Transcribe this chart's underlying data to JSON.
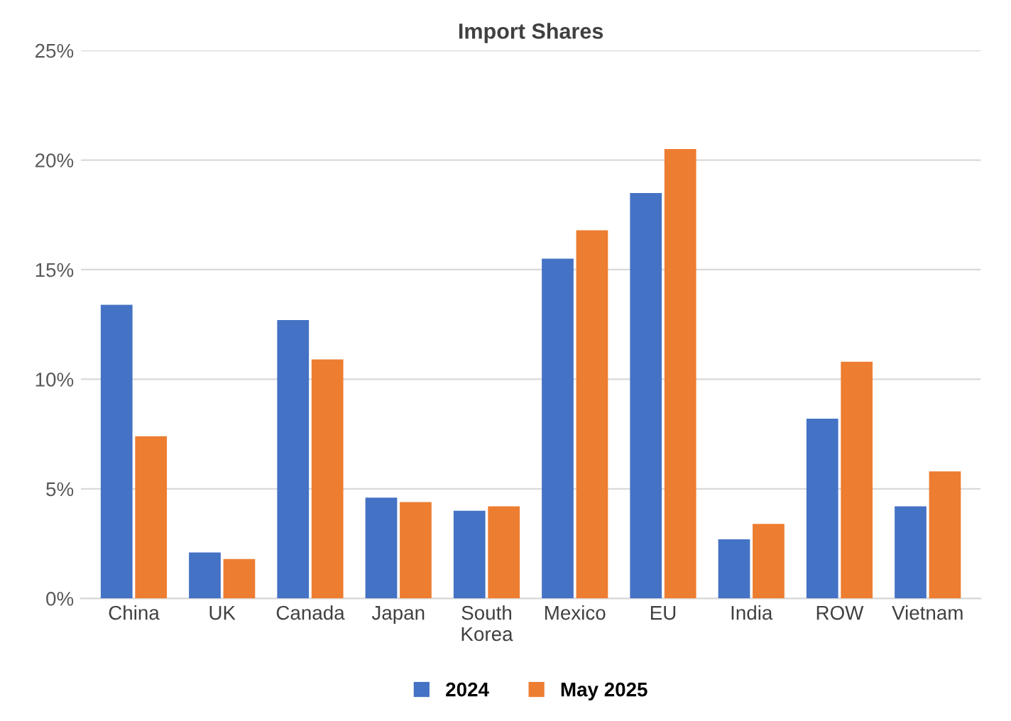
{
  "chart_data": {
    "type": "bar",
    "title": "Import Shares",
    "categories": [
      "China",
      "UK",
      "Canada",
      "Japan",
      "South\nKorea",
      "Mexico",
      "EU",
      "India",
      "ROW",
      "Vietnam"
    ],
    "series": [
      {
        "name": "2024",
        "color": "#4472c4",
        "values": [
          13.4,
          2.1,
          12.7,
          4.6,
          4.0,
          15.5,
          18.5,
          2.7,
          8.2,
          4.2
        ]
      },
      {
        "name": "May 2025",
        "color": "#ed7d31",
        "values": [
          7.4,
          1.8,
          10.9,
          4.4,
          4.2,
          16.8,
          20.5,
          3.4,
          10.8,
          5.8
        ]
      }
    ],
    "ylim": [
      0,
      25
    ],
    "yticks": [
      {
        "value": 0,
        "label": "0%"
      },
      {
        "value": 5,
        "label": "5%"
      },
      {
        "value": 10,
        "label": "10%"
      },
      {
        "value": 15,
        "label": "15%"
      },
      {
        "value": 20,
        "label": "20%"
      },
      {
        "value": 25,
        "label": "25%"
      }
    ],
    "grid": "y",
    "legend": "bottom"
  }
}
